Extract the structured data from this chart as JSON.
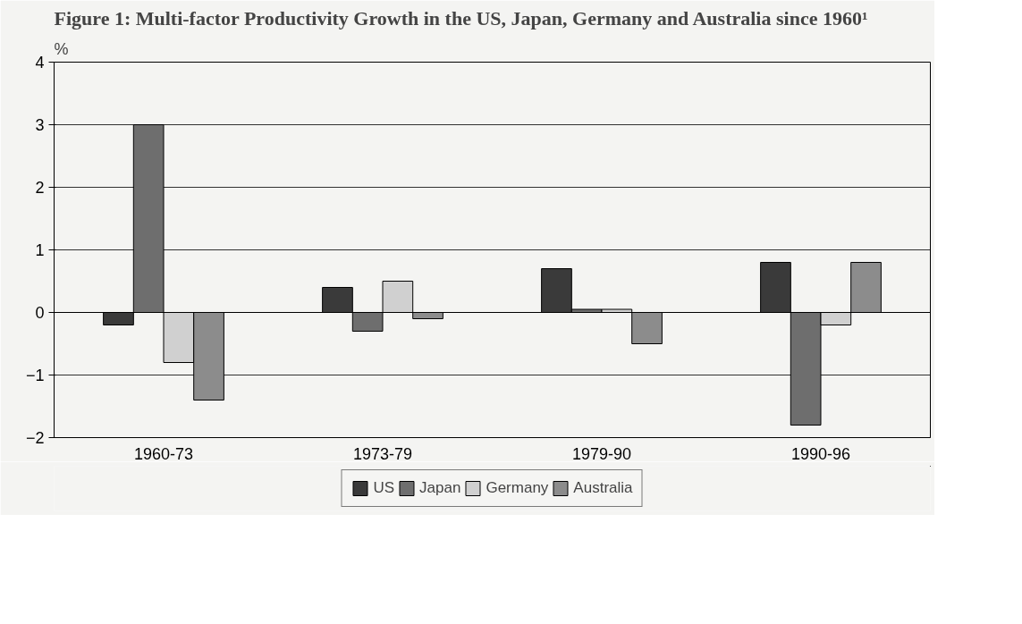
{
  "chart_data": {
    "type": "bar",
    "title": "Figure 1: Multi-factor Productivity Growth in the US, Japan, Germany and Australia since 1960¹",
    "ylabel": "%",
    "categories": [
      "1960-73",
      "1973-79",
      "1979-90",
      "1990-96"
    ],
    "series": [
      {
        "name": "US",
        "color": "#3a3a3a",
        "values": [
          -0.2,
          0.4,
          0.7,
          0.8
        ]
      },
      {
        "name": "Japan",
        "color": "#6e6e6e",
        "values": [
          3.0,
          -0.3,
          0.05,
          -1.8
        ]
      },
      {
        "name": "Germany",
        "color": "#d0d0d0",
        "values": [
          -0.8,
          0.5,
          0.05,
          -0.2
        ]
      },
      {
        "name": "Australia",
        "color": "#8c8c8c",
        "values": [
          -1.4,
          -0.1,
          -0.5,
          0.8
        ]
      }
    ],
    "ylim": [
      -2,
      4
    ],
    "yticks": [
      -2,
      -1,
      0,
      1,
      2,
      3,
      4
    ],
    "grid": "y",
    "legend": "bottom"
  }
}
